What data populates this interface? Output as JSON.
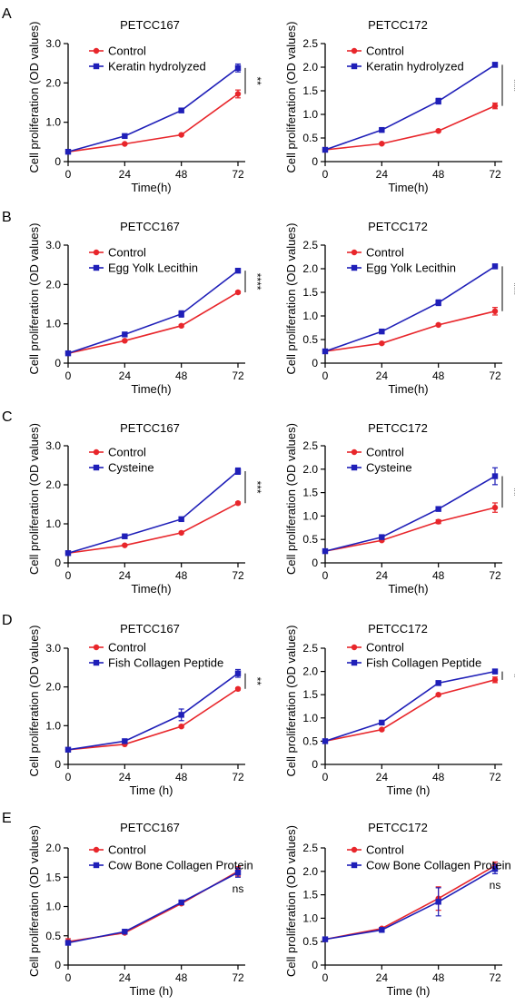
{
  "colors": {
    "control": "#e8262b",
    "treatment": "#1f1fb8",
    "axis": "#000000"
  },
  "panels": [
    {
      "letter": "A",
      "charts": [
        {
          "type": "line",
          "title": "PETCC167",
          "xlabel": "Time(h)",
          "ylabel": "Cell proliferation (OD values)",
          "x": [
            0,
            24,
            48,
            72
          ],
          "xlim": [
            0,
            72
          ],
          "ylim": [
            0,
            3.0
          ],
          "xticks": [
            "0",
            "24",
            "48",
            "72"
          ],
          "yticks": [
            "0",
            "1.0",
            "2.0",
            "3.0"
          ],
          "series": [
            {
              "name": "Control",
              "values": [
                0.25,
                0.45,
                0.68,
                1.72
              ],
              "err": [
                0.02,
                0.02,
                0.02,
                0.1
              ]
            },
            {
              "name": "Keratin hydrolyzed",
              "values": [
                0.25,
                0.65,
                1.3,
                2.38
              ],
              "err": [
                0.02,
                0.03,
                0.05,
                0.1
              ]
            }
          ],
          "significance": "**"
        },
        {
          "type": "line",
          "title": "PETCC172",
          "xlabel": "Time(h)",
          "ylabel": "Cell proliferation (OD values)",
          "x": [
            0,
            24,
            48,
            72
          ],
          "xlim": [
            0,
            72
          ],
          "ylim": [
            0,
            2.5
          ],
          "xticks": [
            "0",
            "24",
            "48",
            "72"
          ],
          "yticks": [
            "0",
            "0.5",
            "1.0",
            "1.5",
            "2.0",
            "2.5"
          ],
          "series": [
            {
              "name": "Control",
              "values": [
                0.25,
                0.38,
                0.65,
                1.18
              ],
              "err": [
                0.02,
                0.02,
                0.02,
                0.06
              ]
            },
            {
              "name": "Keratin hydrolyzed",
              "values": [
                0.25,
                0.67,
                1.28,
                2.05
              ],
              "err": [
                0.02,
                0.03,
                0.06,
                0.05
              ]
            }
          ],
          "significance": "***"
        }
      ]
    },
    {
      "letter": "B",
      "charts": [
        {
          "type": "line",
          "title": "PETCC167",
          "xlabel": "Time(h)",
          "ylabel": "Cell proliferation (OD values)",
          "x": [
            0,
            24,
            48,
            72
          ],
          "xlim": [
            0,
            72
          ],
          "ylim": [
            0,
            3.0
          ],
          "xticks": [
            "0",
            "24",
            "48",
            "72"
          ],
          "yticks": [
            "0",
            "1.0",
            "2.0",
            "3.0"
          ],
          "series": [
            {
              "name": "Control",
              "values": [
                0.25,
                0.57,
                0.95,
                1.8
              ],
              "err": [
                0.02,
                0.02,
                0.03,
                0.03
              ]
            },
            {
              "name": "Egg Yolk Lecithin",
              "values": [
                0.25,
                0.73,
                1.25,
                2.35
              ],
              "err": [
                0.02,
                0.03,
                0.08,
                0.03
              ]
            }
          ],
          "significance": "****"
        },
        {
          "type": "line",
          "title": "PETCC172",
          "xlabel": "Time(h)",
          "ylabel": "Cell proliferation (OD values)",
          "x": [
            0,
            24,
            48,
            72
          ],
          "xlim": [
            0,
            72
          ],
          "ylim": [
            0,
            2.5
          ],
          "xticks": [
            "0",
            "24",
            "48",
            "72"
          ],
          "yticks": [
            "0",
            "0.5",
            "1.0",
            "1.5",
            "2.0",
            "2.5"
          ],
          "series": [
            {
              "name": "Control",
              "values": [
                0.25,
                0.42,
                0.81,
                1.1
              ],
              "err": [
                0.02,
                0.02,
                0.02,
                0.08
              ]
            },
            {
              "name": "Egg Yolk Lecithin",
              "values": [
                0.25,
                0.67,
                1.28,
                2.05
              ],
              "err": [
                0.02,
                0.02,
                0.06,
                0.05
              ]
            }
          ],
          "significance": "***"
        }
      ]
    },
    {
      "letter": "C",
      "charts": [
        {
          "type": "line",
          "title": "PETCC167",
          "xlabel": "Time(h)",
          "ylabel": "Cell proliferation (OD values)",
          "x": [
            0,
            24,
            48,
            72
          ],
          "xlim": [
            0,
            72
          ],
          "ylim": [
            0,
            3.0
          ],
          "xticks": [
            "0",
            "24",
            "48",
            "72"
          ],
          "yticks": [
            "0",
            "1.0",
            "2.0",
            "3.0"
          ],
          "series": [
            {
              "name": "Control",
              "values": [
                0.25,
                0.45,
                0.77,
                1.53
              ],
              "err": [
                0.02,
                0.02,
                0.02,
                0.03
              ]
            },
            {
              "name": "Cysteine",
              "values": [
                0.25,
                0.68,
                1.12,
                2.35
              ],
              "err": [
                0.02,
                0.02,
                0.03,
                0.08
              ]
            }
          ],
          "significance": "***"
        },
        {
          "type": "line",
          "title": "PETCC172",
          "xlabel": "Time(h)",
          "ylabel": "Cell proliferation (OD values)",
          "x": [
            0,
            24,
            48,
            72
          ],
          "xlim": [
            0,
            72
          ],
          "ylim": [
            0,
            2.5
          ],
          "xticks": [
            "0",
            "24",
            "48",
            "72"
          ],
          "yticks": [
            "0",
            "0.5",
            "1.0",
            "1.5",
            "2.0",
            "2.5"
          ],
          "series": [
            {
              "name": "Control",
              "values": [
                0.25,
                0.48,
                0.88,
                1.18
              ],
              "err": [
                0.02,
                0.02,
                0.04,
                0.1
              ]
            },
            {
              "name": "Cysteine",
              "values": [
                0.25,
                0.55,
                1.15,
                1.85
              ],
              "err": [
                0.02,
                0.02,
                0.02,
                0.18
              ]
            }
          ],
          "significance": "**"
        }
      ]
    },
    {
      "letter": "D",
      "charts": [
        {
          "type": "line",
          "title": "PETCC167",
          "xlabel": "Time (h)",
          "ylabel": "Cell proliferation (OD values)",
          "x": [
            0,
            24,
            48,
            72
          ],
          "xlim": [
            0,
            72
          ],
          "ylim": [
            0,
            3.0
          ],
          "xticks": [
            "0",
            "24",
            "48",
            "72"
          ],
          "yticks": [
            "0",
            "1.0",
            "2.0",
            "3.0"
          ],
          "series": [
            {
              "name": "Control",
              "values": [
                0.38,
                0.52,
                0.98,
                1.95
              ],
              "err": [
                0.02,
                0.02,
                0.03,
                0.03
              ]
            },
            {
              "name": "Fish Collagen Peptide",
              "values": [
                0.38,
                0.6,
                1.28,
                2.35
              ],
              "err": [
                0.02,
                0.02,
                0.15,
                0.1
              ]
            }
          ],
          "significance": "**"
        },
        {
          "type": "line",
          "title": "PETCC172",
          "xlabel": "Time (h)",
          "ylabel": "Cell proliferation (OD values)",
          "x": [
            0,
            24,
            48,
            72
          ],
          "xlim": [
            0,
            72
          ],
          "ylim": [
            0,
            2.5
          ],
          "xticks": [
            "0",
            "24",
            "48",
            "72"
          ],
          "yticks": [
            "0",
            "0.5",
            "1.0",
            "1.5",
            "2.0",
            "2.5"
          ],
          "series": [
            {
              "name": "Control",
              "values": [
                0.5,
                0.75,
                1.5,
                1.82
              ],
              "err": [
                0.02,
                0.02,
                0.02,
                0.06
              ]
            },
            {
              "name": "Fish Collagen Peptide",
              "values": [
                0.5,
                0.9,
                1.75,
                2.0
              ],
              "err": [
                0.02,
                0.03,
                0.05,
                0.05
              ]
            }
          ],
          "significance": "*"
        }
      ]
    },
    {
      "letter": "E",
      "charts": [
        {
          "type": "line",
          "title": "PETCC167",
          "xlabel": "Time (h)",
          "ylabel": "Cell proliferation (OD values)",
          "x": [
            0,
            24,
            48,
            72
          ],
          "xlim": [
            0,
            72
          ],
          "ylim": [
            0,
            2.0
          ],
          "xticks": [
            "0",
            "24",
            "48",
            "72"
          ],
          "yticks": [
            "0",
            "0.5",
            "1.0",
            "1.5",
            "2.0"
          ],
          "series": [
            {
              "name": "Control",
              "values": [
                0.4,
                0.55,
                1.05,
                1.6
              ],
              "err": [
                0.05,
                0.02,
                0.02,
                0.08
              ]
            },
            {
              "name": "Cow Bone Collagen Protein",
              "values": [
                0.38,
                0.57,
                1.07,
                1.58
              ],
              "err": [
                0.02,
                0.02,
                0.03,
                0.08
              ]
            }
          ],
          "significance": "ns"
        },
        {
          "type": "line",
          "title": "PETCC172",
          "xlabel": "Time (h)",
          "ylabel": "Cell proliferation (OD values)",
          "x": [
            0,
            24,
            48,
            72
          ],
          "xlim": [
            0,
            72
          ],
          "ylim": [
            0,
            2.5
          ],
          "xticks": [
            "0",
            "24",
            "48",
            "72"
          ],
          "yticks": [
            "0",
            "0.5",
            "1.0",
            "1.5",
            "2.0",
            "2.5"
          ],
          "series": [
            {
              "name": "Control",
              "values": [
                0.55,
                0.78,
                1.42,
                2.12
              ],
              "err": [
                0.02,
                0.02,
                0.25,
                0.08
              ]
            },
            {
              "name": "Cow Bone Collagen Protein",
              "values": [
                0.55,
                0.75,
                1.35,
                2.05
              ],
              "err": [
                0.02,
                0.02,
                0.3,
                0.1
              ]
            }
          ],
          "significance": "ns"
        }
      ]
    }
  ]
}
